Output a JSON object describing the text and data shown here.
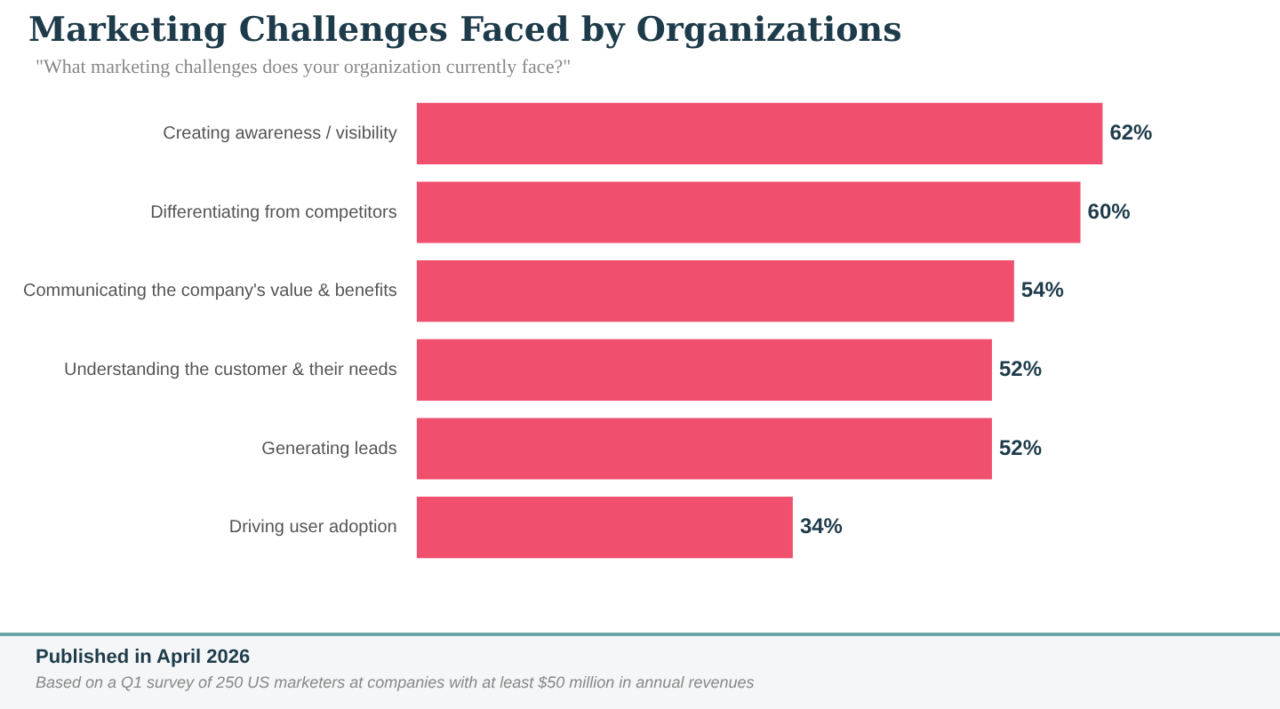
{
  "chart_data": {
    "type": "bar",
    "orientation": "horizontal",
    "title": "Marketing Challenges Faced by Organizations",
    "subtitle": "\"What marketing challenges does your organization currently face?\"",
    "categories": [
      "Creating awareness / visibility",
      "Differentiating from competitors",
      "Communicating the company's value & benefits",
      "Understanding the customer & their needs",
      "Generating leads",
      "Driving user adoption"
    ],
    "values": [
      62,
      60,
      54,
      52,
      52,
      34
    ],
    "color": "#f0506e",
    "value_labels": [
      "62%",
      "60%",
      "54%",
      "52%",
      "52%",
      "34%"
    ],
    "tick_labels": "y",
    "legend": false,
    "annotations": [
      "Published in April 2026",
      "Based on a Q1 survey of 250 US marketers at companies with at least $50 million in annual revenues"
    ]
  }
}
